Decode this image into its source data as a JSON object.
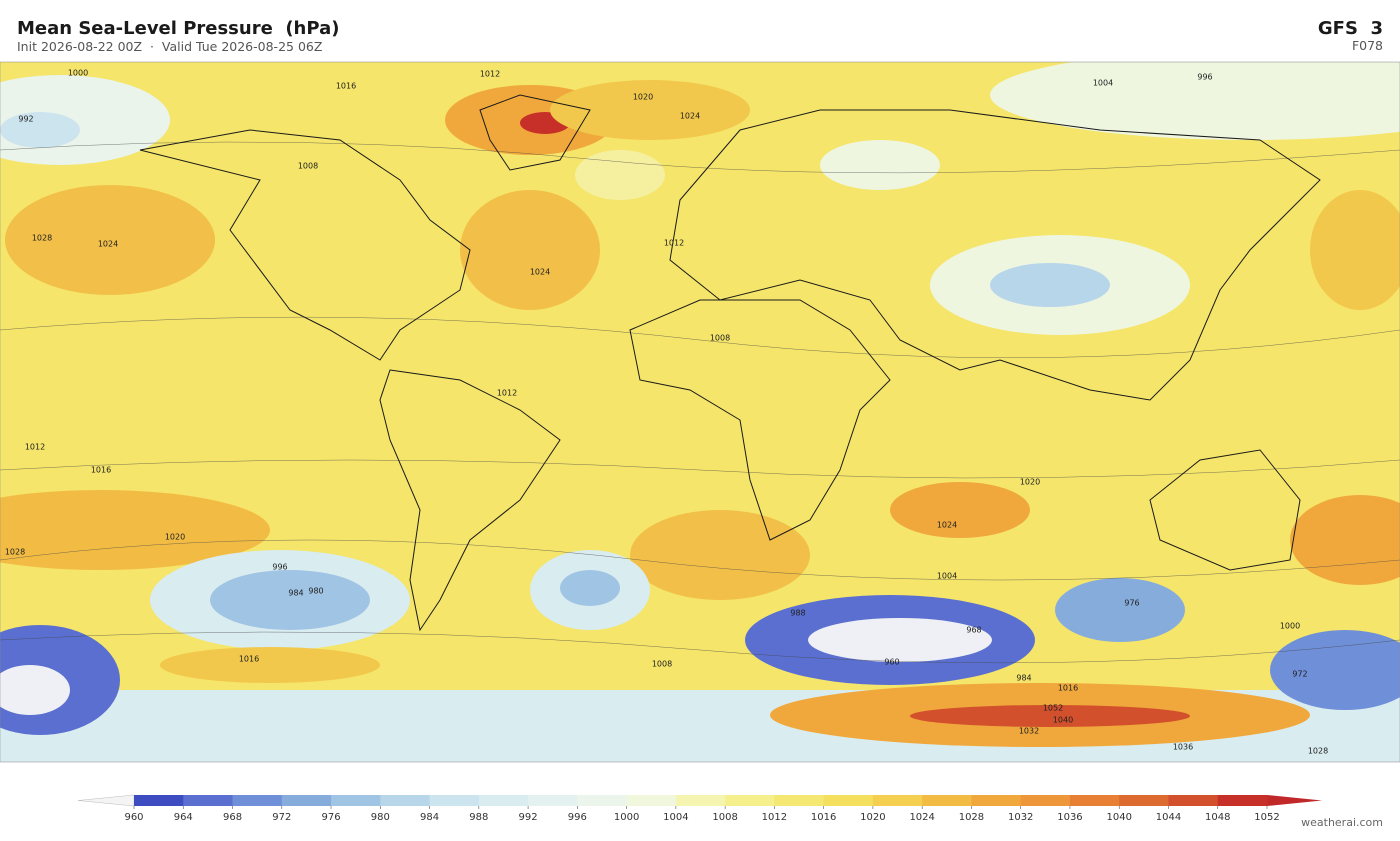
{
  "header": {
    "title": "Mean Sea-Level Pressure  (hPa)",
    "subtitle": "Init 2026-08-22 00Z  ·  Valid Tue 2026-08-25 06Z",
    "model": "GFS  3",
    "forecast_hour": "F078"
  },
  "map": {
    "contour_labels": [
      1000,
      1012,
      1008,
      1016,
      1020,
      1024,
      1028,
      1004,
      992,
      996,
      1024,
      1024,
      1012,
      1008,
      1020,
      1028,
      1024,
      1016,
      1012,
      1020,
      1008,
      996,
      984,
      980,
      988,
      976,
      968,
      960,
      972,
      984,
      1016,
      1032,
      1036,
      1028,
      1040,
      1052,
      1000,
      1004,
      1012,
      1016
    ]
  },
  "colorbar": {
    "ticks": [
      960,
      964,
      968,
      972,
      976,
      980,
      984,
      988,
      992,
      996,
      1000,
      1004,
      1008,
      1012,
      1016,
      1020,
      1024,
      1028,
      1032,
      1036,
      1040,
      1044,
      1048,
      1052
    ],
    "colors": [
      "#3d4cc0",
      "#5a6fd0",
      "#6f8fd8",
      "#86acdc",
      "#a0c4e4",
      "#b8d6ea",
      "#cce4ee",
      "#d9ecf0",
      "#e3f1f1",
      "#ebf5ec",
      "#f0f7dc",
      "#f5f4b0",
      "#f5ef8c",
      "#f4e873",
      "#f5df5e",
      "#f5cf50",
      "#f2bc44",
      "#f0a83c",
      "#ee963a",
      "#e77f34",
      "#dd6a30",
      "#d2502c",
      "#c63028"
    ],
    "under_color": "#f4f4f4",
    "over_color": "#c0282a"
  },
  "watermark": "weatherai.com"
}
